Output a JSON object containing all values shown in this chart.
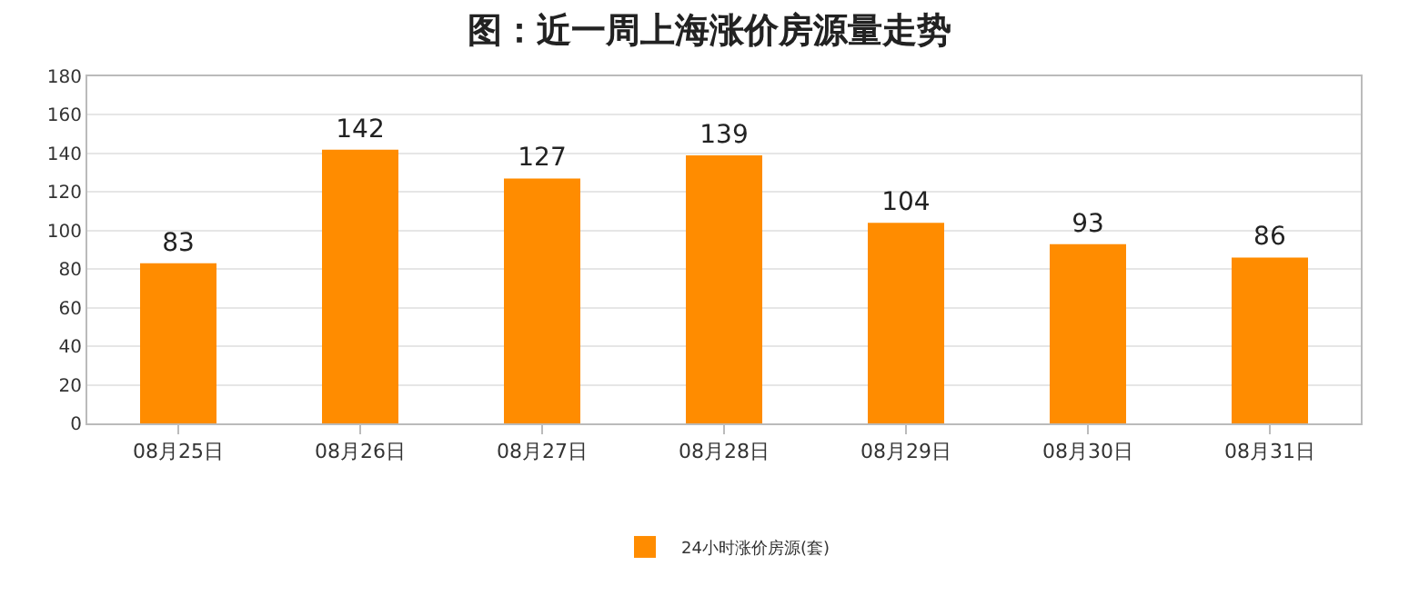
{
  "chart_data": {
    "type": "bar",
    "title": "图：近一周上海涨价房源量走势",
    "categories": [
      "08月25日",
      "08月26日",
      "08月27日",
      "08月28日",
      "08月29日",
      "08月30日",
      "08月31日"
    ],
    "series": [
      {
        "name": "24小时涨价房源(套)",
        "color": "#ff8c00",
        "values": [
          83,
          142,
          127,
          139,
          104,
          93,
          86
        ]
      }
    ],
    "ylim": [
      0,
      180
    ],
    "yticks": [
      0,
      20,
      40,
      60,
      80,
      100,
      120,
      140,
      160,
      180
    ],
    "grid": "y",
    "legend": "bottom",
    "data_labels": true
  }
}
